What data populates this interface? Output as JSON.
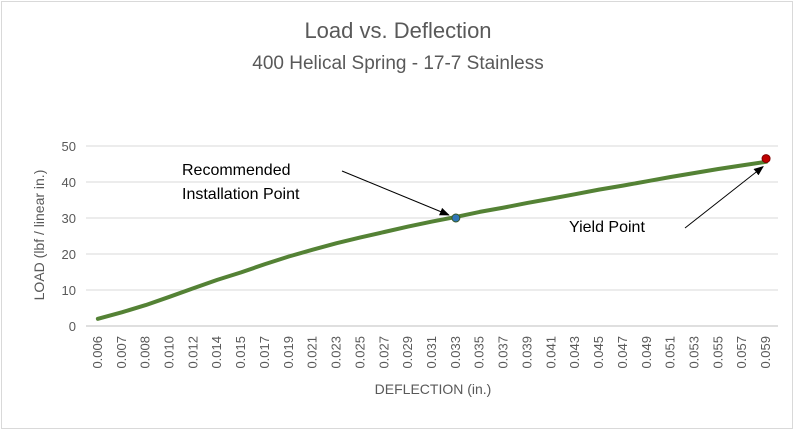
{
  "chart_data": {
    "type": "line",
    "title": "Load vs. Deflection",
    "subtitle": "400 Helical Spring - 17-7 Stainless",
    "xlabel": "DEFLECTION (in.)",
    "ylabel": "LOAD (lbf / linear in.)",
    "x_tick_labels": [
      "0.006",
      "0.007",
      "0.008",
      "0.010",
      "0.012",
      "0.014",
      "0.015",
      "0.017",
      "0.019",
      "0.021",
      "0.023",
      "0.025",
      "0.027",
      "0.029",
      "0.031",
      "0.033",
      "0.035",
      "0.037",
      "0.039",
      "0.041",
      "0.043",
      "0.045",
      "0.047",
      "0.049",
      "0.051",
      "0.053",
      "0.055",
      "0.057",
      "0.059"
    ],
    "y_ticks": [
      0,
      10,
      20,
      30,
      40,
      50
    ],
    "ylim": [
      0,
      50
    ],
    "grid": "horizontal",
    "series": [
      {
        "color": "#548235",
        "x": [
          0.006,
          0.007,
          0.008,
          0.01,
          0.012,
          0.014,
          0.015,
          0.017,
          0.019,
          0.021,
          0.023,
          0.025,
          0.027,
          0.029,
          0.031,
          0.033,
          0.035,
          0.037,
          0.039,
          0.041,
          0.043,
          0.045,
          0.047,
          0.049,
          0.051,
          0.053,
          0.055,
          0.057,
          0.059
        ],
        "y": [
          2.0,
          3.8,
          5.8,
          8.1,
          10.5,
          12.8,
          14.9,
          17.2,
          19.3,
          21.2,
          23.0,
          24.6,
          26.1,
          27.6,
          29.0,
          30.3,
          31.7,
          32.9,
          34.2,
          35.4,
          36.6,
          37.9,
          39.0,
          40.2,
          41.4,
          42.5,
          43.6,
          44.6,
          45.6
        ]
      }
    ],
    "annotations": [
      {
        "id": "recommended",
        "lines": [
          "Recommended",
          "Installation Point"
        ],
        "x": 0.033,
        "y": 30.0,
        "marker_color": "#2e75b6"
      },
      {
        "id": "yield",
        "lines": [
          "Yield Point"
        ],
        "x": 0.059,
        "y": 46.5,
        "marker_color": "#c00000"
      }
    ],
    "colors": {
      "axis": "#bfbfbf",
      "grid": "#d9d9d9",
      "text": "#595959"
    }
  }
}
